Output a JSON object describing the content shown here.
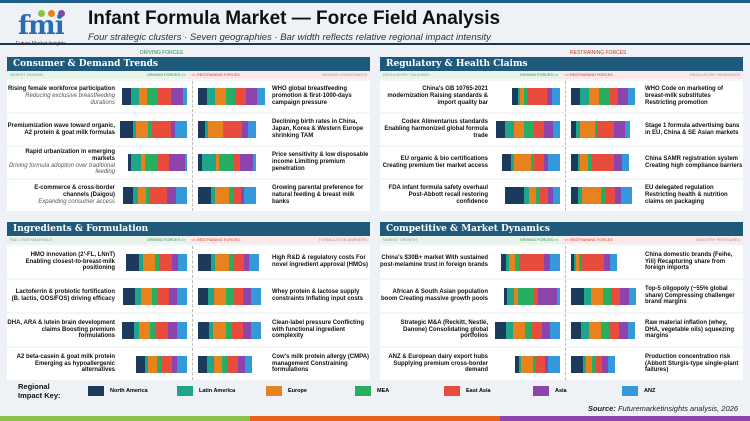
{
  "header": {
    "title": "Infant Formula Market — Force Field Analysis",
    "subtitle": "Four strategic clusters · Seven geographies · Bar width reflects relative regional impact intensity",
    "logo_text": "fmi",
    "logo_sub": "Future Market Insights"
  },
  "labels": {
    "driving": "DRIVING FORCES",
    "restraining": "RESTRAINING FORCES",
    "driving_arrow": "DRIVING FORCES >>",
    "restraining_arrow": "<< RESTRAINING FORCES"
  },
  "regions": [
    {
      "name": "North America",
      "color": "#1b3a5c"
    },
    {
      "name": "Latin America",
      "color": "#1fa58a"
    },
    {
      "name": "Europe",
      "color": "#e8821e"
    },
    {
      "name": "MEA",
      "color": "#27ae60"
    },
    {
      "name": "East Asia",
      "color": "#e74c3c"
    },
    {
      "name": "Asia",
      "color": "#8e44ad"
    },
    {
      "name": "ANZ",
      "color": "#3498db"
    }
  ],
  "panels": [
    {
      "title": "Consumer & Demand Trends",
      "left_sub": "MARKET DEMAND",
      "right_sub": "DEMAND CONSTRAINTS",
      "rows": [
        {
          "drive": {
            "lines": [
              "Rising female workforce participation"
            ],
            "note": "Reducing exclusive breastfeeding durations",
            "impact": [
              28,
              22,
              27,
              30,
              42,
              35,
              13
            ]
          },
          "restrain": {
            "lines": [
              "WHO global breastfeeding promotion & first-1000-days campaign pressure"
            ],
            "impact": [
              28,
              25,
              33,
              30,
              30,
              32,
              25
            ]
          }
        },
        {
          "drive": {
            "lines": [
              "Premiumization wave toward organic, A2 protein & goat milk formulas"
            ],
            "impact": [
              40,
              10,
              37,
              12,
              55,
              15,
              35
            ]
          },
          "restrain": {
            "lines": [
              "Declining birth rates in China, Japan, Korea & Western Europe shrinking TAM"
            ],
            "impact": [
              20,
              10,
              45,
              4,
              55,
              18,
              25
            ]
          }
        },
        {
          "drive": {
            "lines": [
              "Rapid urbanization in emerging markets"
            ],
            "note": "Driving formula adoption over traditional feeding",
            "impact": [
              10,
              30,
              12,
              38,
              35,
              48,
              6
            ]
          },
          "restrain": {
            "lines": [
              "Price sensitivity & low disposable income Limiting premium penetration"
            ],
            "impact": [
              12,
              42,
              10,
              42,
              20,
              42,
              8
            ]
          }
        },
        {
          "drive": {
            "lines": [
              "E-commerce & cross-border channels (Daigou)"
            ],
            "note": "Expanding consumer access",
            "impact": [
              30,
              15,
              25,
              10,
              55,
              28,
              32
            ]
          },
          "restrain": {
            "lines": [
              "Growing parental preference for natural feeding & breast milk banks"
            ],
            "impact": [
              38,
              15,
              40,
              12,
              25,
              10,
              35
            ]
          }
        }
      ]
    },
    {
      "title": "Regulatory & Health Claims",
      "left_sub": "REGULATORY TAILWINDS",
      "right_sub": "REGULATORY HEADWINDS",
      "rows": [
        {
          "drive": {
            "lines": [
              "China's GB 10765-2021 modernization Raising standards & import quality bar"
            ],
            "impact": [
              18,
              8,
              10,
              10,
              60,
              15,
              25
            ]
          },
          "restrain": {
            "lines": [
              "WHO Code on marketing of breast-milk substitutes Restricting promotion"
            ],
            "impact": [
              28,
              28,
              30,
              30,
              25,
              32,
              22
            ]
          }
        },
        {
          "drive": {
            "lines": [
              "Codex Alimentarius standards Enabling harmonized global formula trade"
            ],
            "impact": [
              28,
              25,
              33,
              28,
              30,
              28,
              22
            ]
          },
          "restrain": {
            "lines": [
              "Stage 1 formula advertising bans in EU, China & SE Asian markets"
            ],
            "impact": [
              15,
              12,
              45,
              8,
              50,
              35,
              15
            ]
          }
        },
        {
          "drive": {
            "lines": [
              "EU organic & bio certifications Creating premium tier market access"
            ],
            "impact": [
              28,
              10,
              50,
              10,
              28,
              15,
              35
            ]
          },
          "restrain": {
            "lines": [
              "China SAMR registration system Creating high compliance barriers"
            ],
            "impact": [
              20,
              8,
              25,
              8,
              70,
              25,
              20
            ]
          }
        },
        {
          "drive": {
            "lines": [
              "FDA infant formula safety overhaul Post-Abbott recall restoring confidence"
            ],
            "impact": [
              58,
              15,
              20,
              12,
              25,
              15,
              22
            ]
          },
          "restrain": {
            "lines": [
              "EU delegated regulation Restricting health & nutrition claims on packaging"
            ],
            "impact": [
              20,
              12,
              58,
              12,
              30,
              20,
              32
            ]
          }
        }
      ]
    },
    {
      "title": "Ingredients & Formulation",
      "left_sub": "R&D / RAW MATERIALS",
      "right_sub": "FORMULATION BARRIERS",
      "rows": [
        {
          "drive": {
            "lines": [
              "HMO innovation (2'-FL, LNnT) Enabling closest-to-breast-milk positioning"
            ],
            "impact": [
              38,
              12,
              38,
              12,
              38,
              18,
              28
            ]
          },
          "restrain": {
            "lines": [
              "High R&D & regulatory costs For novel ingredient approval (HMOs)"
            ],
            "impact": [
              38,
              15,
              40,
              12,
              35,
              15,
              30
            ]
          }
        },
        {
          "drive": {
            "lines": [
              "Lactoferrin & probiotic fortification (B. lactis, GOS/FOS) driving efficacy"
            ],
            "impact": [
              35,
              18,
              35,
              15,
              35,
              25,
              30
            ]
          },
          "restrain": {
            "lines": [
              "Whey protein & lactose supply constraints Inflating input costs"
            ],
            "impact": [
              30,
              20,
              35,
              20,
              30,
              25,
              30
            ]
          }
        },
        {
          "drive": {
            "lines": [
              "DHA, ARA & lutein brain development claims Boosting premium formulations"
            ],
            "impact": [
              35,
              15,
              35,
              18,
              35,
              28,
              30
            ]
          },
          "restrain": {
            "lines": [
              "Clean-label pressure Conflicting with functional ingredient complexity"
            ],
            "impact": [
              32,
              12,
              40,
              18,
              35,
              25,
              30
            ]
          }
        },
        {
          "drive": {
            "lines": [
              "A2 beta-casein & goat milk protein Emerging as hypoallergenic alternatives"
            ],
            "impact": [
              28,
              10,
              25,
              12,
              35,
              15,
              30
            ]
          },
          "restrain": {
            "lines": [
              "Cow's milk protein allergy (CMPA) management Constraining formulations"
            ],
            "impact": [
              28,
              20,
              25,
              18,
              30,
              22,
              20
            ]
          }
        }
      ]
    },
    {
      "title": "Competitive & Market Dynamics",
      "left_sub": "MARKET GROWTH",
      "right_sub": "INDUSTRY PRESSURES",
      "rows": [
        {
          "drive": {
            "lines": [
              "China's $30B+ market With sustained post-melamine trust in foreign brands"
            ],
            "impact": [
              15,
              8,
              20,
              10,
              75,
              20,
              30
            ]
          },
          "restrain": {
            "lines": [
              "China domestic brands (Feihe, Yili) Recapturing share from foreign imports"
            ],
            "impact": [
              10,
              6,
              8,
              5,
              70,
              20,
              20
            ]
          }
        },
        {
          "drive": {
            "lines": [
              "African & South Asian population boom Creating massive growth pools"
            ],
            "impact": [
              10,
              20,
              12,
              45,
              15,
              60,
              8
            ]
          },
          "restrain": {
            "lines": [
              "Top-5 oligopoly (~55% global share) Compressing challenger brand margins"
            ],
            "impact": [
              38,
              22,
              38,
              22,
              30,
              25,
              22
            ]
          }
        },
        {
          "drive": {
            "lines": [
              "Strategic M&A (Reckitt, Nestlé, Danone) Consolidating global portfolios"
            ],
            "impact": [
              35,
              20,
              38,
              20,
              30,
              25,
              30
            ]
          },
          "restrain": {
            "lines": [
              "Raw material inflation (whey, DHA, vegetable oils) squeezing margins"
            ],
            "impact": [
              30,
              25,
              35,
              25,
              30,
              28,
              22
            ]
          }
        },
        {
          "drive": {
            "lines": [
              "ANZ & European dairy export hubs Supplying premium cross-border demand"
            ],
            "impact": [
              12,
              6,
              35,
              10,
              25,
              12,
              35
            ]
          },
          "restrain": {
            "lines": [
              "Production concentration risk (Abbott Sturgis-type single-plant failures)"
            ],
            "impact": [
              35,
              10,
              20,
              10,
              20,
              18,
              20
            ]
          }
        }
      ]
    }
  ],
  "legend": {
    "title": "Regional Impact Key:"
  },
  "source": {
    "label": "Source:",
    "text": "Futuremarketinsights analysis, 2026"
  }
}
